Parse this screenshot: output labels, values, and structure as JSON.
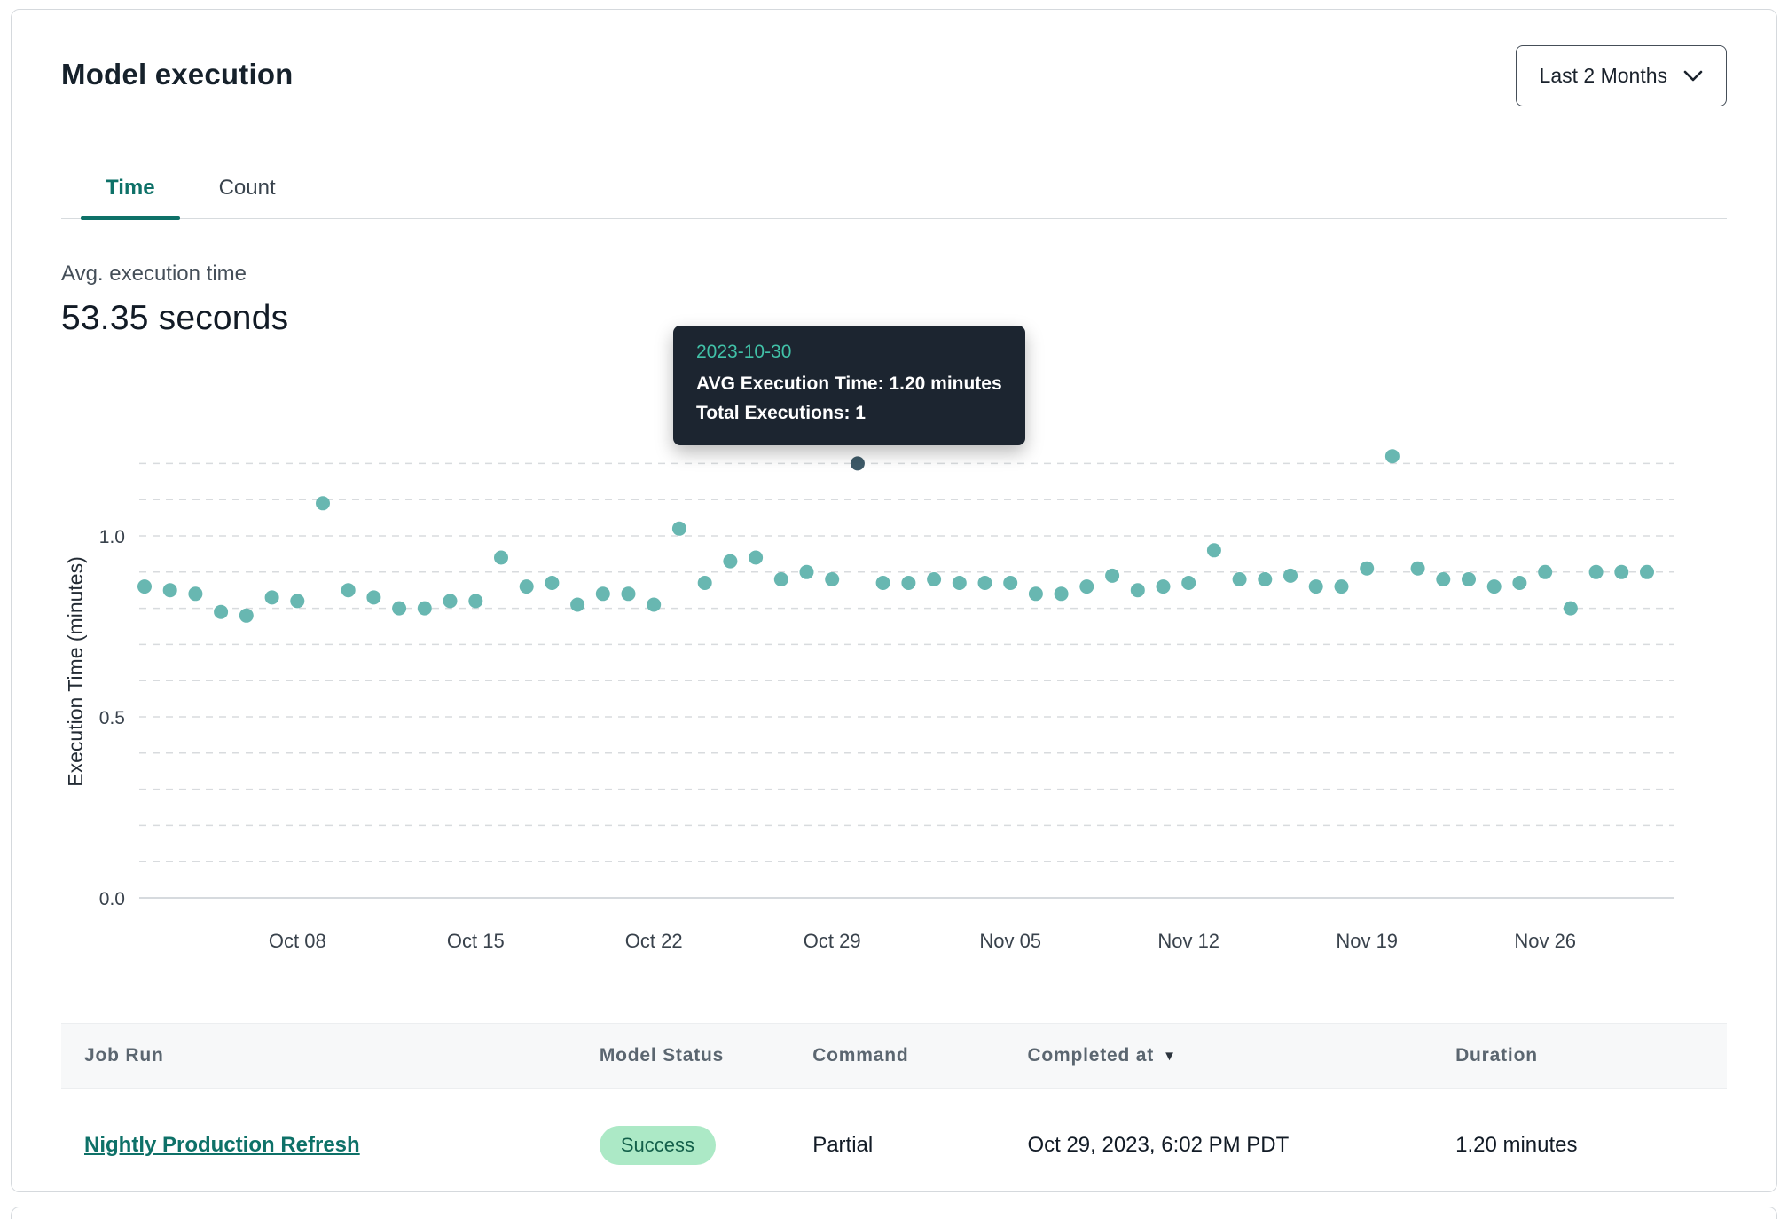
{
  "header": {
    "title": "Model execution",
    "range_selector": {
      "label": "Last 2 Months"
    }
  },
  "tabs": [
    {
      "label": "Time",
      "active": true
    },
    {
      "label": "Count",
      "active": false
    }
  ],
  "summary": {
    "label": "Avg. execution time",
    "value": "53.35 seconds"
  },
  "tooltip": {
    "date": "2023-10-30",
    "line1": "AVG Execution Time: 1.20 minutes",
    "line2": "Total Executions: 1"
  },
  "chart_data": {
    "type": "scatter",
    "title": "",
    "xlabel": "",
    "ylabel": "Execution Time (minutes)",
    "ylim": [
      0,
      1.25
    ],
    "yticks": [
      0.0,
      0.5,
      1.0
    ],
    "grid_step": 0.1,
    "grid_max": 1.2,
    "grid_style": "dashed",
    "legend": "none",
    "point_color": "#68b7b1",
    "highlight_color": "#3d5a68",
    "highlight_date": "2023-10-30",
    "x_ticks": [
      {
        "label": "Oct 08",
        "i": 6
      },
      {
        "label": "Oct 15",
        "i": 13
      },
      {
        "label": "Oct 22",
        "i": 20
      },
      {
        "label": "Oct 29",
        "i": 27
      },
      {
        "label": "Nov 05",
        "i": 34
      },
      {
        "label": "Nov 12",
        "i": 41
      },
      {
        "label": "Nov 19",
        "i": 48
      },
      {
        "label": "Nov 26",
        "i": 55
      }
    ],
    "points": [
      {
        "d": "2023-10-02",
        "v": 0.86
      },
      {
        "d": "2023-10-03",
        "v": 0.85
      },
      {
        "d": "2023-10-04",
        "v": 0.84
      },
      {
        "d": "2023-10-05",
        "v": 0.79
      },
      {
        "d": "2023-10-06",
        "v": 0.78
      },
      {
        "d": "2023-10-07",
        "v": 0.83
      },
      {
        "d": "2023-10-08",
        "v": 0.82
      },
      {
        "d": "2023-10-09",
        "v": 1.09
      },
      {
        "d": "2023-10-10",
        "v": 0.85
      },
      {
        "d": "2023-10-11",
        "v": 0.83
      },
      {
        "d": "2023-10-12",
        "v": 0.8
      },
      {
        "d": "2023-10-13",
        "v": 0.8
      },
      {
        "d": "2023-10-14",
        "v": 0.82
      },
      {
        "d": "2023-10-15",
        "v": 0.82
      },
      {
        "d": "2023-10-16",
        "v": 0.94
      },
      {
        "d": "2023-10-17",
        "v": 0.86
      },
      {
        "d": "2023-10-18",
        "v": 0.87
      },
      {
        "d": "2023-10-19",
        "v": 0.81
      },
      {
        "d": "2023-10-20",
        "v": 0.84
      },
      {
        "d": "2023-10-21",
        "v": 0.84
      },
      {
        "d": "2023-10-22",
        "v": 0.81
      },
      {
        "d": "2023-10-23",
        "v": 1.02
      },
      {
        "d": "2023-10-24",
        "v": 0.87
      },
      {
        "d": "2023-10-25",
        "v": 0.93
      },
      {
        "d": "2023-10-26",
        "v": 0.94
      },
      {
        "d": "2023-10-27",
        "v": 0.88
      },
      {
        "d": "2023-10-28",
        "v": 0.9
      },
      {
        "d": "2023-10-29",
        "v": 0.88
      },
      {
        "d": "2023-10-30",
        "v": 1.2
      },
      {
        "d": "2023-10-31",
        "v": 0.87
      },
      {
        "d": "2023-11-01",
        "v": 0.87
      },
      {
        "d": "2023-11-02",
        "v": 0.88
      },
      {
        "d": "2023-11-03",
        "v": 0.87
      },
      {
        "d": "2023-11-04",
        "v": 0.87
      },
      {
        "d": "2023-11-05",
        "v": 0.87
      },
      {
        "d": "2023-11-06",
        "v": 0.84
      },
      {
        "d": "2023-11-07",
        "v": 0.84
      },
      {
        "d": "2023-11-08",
        "v": 0.86
      },
      {
        "d": "2023-11-09",
        "v": 0.89
      },
      {
        "d": "2023-11-10",
        "v": 0.85
      },
      {
        "d": "2023-11-11",
        "v": 0.86
      },
      {
        "d": "2023-11-12",
        "v": 0.87
      },
      {
        "d": "2023-11-13",
        "v": 0.96
      },
      {
        "d": "2023-11-14",
        "v": 0.88
      },
      {
        "d": "2023-11-15",
        "v": 0.88
      },
      {
        "d": "2023-11-16",
        "v": 0.89
      },
      {
        "d": "2023-11-17",
        "v": 0.86
      },
      {
        "d": "2023-11-18",
        "v": 0.86
      },
      {
        "d": "2023-11-19",
        "v": 0.91
      },
      {
        "d": "2023-11-20",
        "v": 1.22
      },
      {
        "d": "2023-11-21",
        "v": 0.91
      },
      {
        "d": "2023-11-22",
        "v": 0.88
      },
      {
        "d": "2023-11-23",
        "v": 0.88
      },
      {
        "d": "2023-11-24",
        "v": 0.86
      },
      {
        "d": "2023-11-25",
        "v": 0.87
      },
      {
        "d": "2023-11-26",
        "v": 0.9
      },
      {
        "d": "2023-11-27",
        "v": 0.8
      },
      {
        "d": "2023-11-28",
        "v": 0.9
      },
      {
        "d": "2023-11-29",
        "v": 0.9
      },
      {
        "d": "2023-11-30",
        "v": 0.9
      }
    ]
  },
  "table": {
    "headers": [
      "Job Run",
      "Model Status",
      "Command",
      "Completed at",
      "Duration"
    ],
    "rows": [
      {
        "job_run": "Nightly Production Refresh",
        "model_status": "Success",
        "command": "Partial",
        "completed_at": "Oct 29, 2023, 6:02 PM PDT",
        "duration": "1.20 minutes"
      }
    ]
  }
}
